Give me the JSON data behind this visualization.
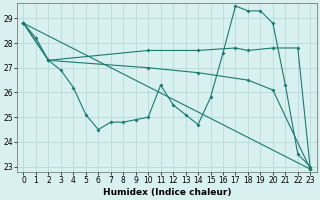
{
  "xlabel": "Humidex (Indice chaleur)",
  "bg_color": "#d8f0f0",
  "grid_color": "#b8dada",
  "line_color": "#1a7a6e",
  "xlim": [
    -0.5,
    23.5
  ],
  "ylim": [
    22.8,
    29.6
  ],
  "yticks": [
    23,
    24,
    25,
    26,
    27,
    28,
    29
  ],
  "xticks": [
    0,
    1,
    2,
    3,
    4,
    5,
    6,
    7,
    8,
    9,
    10,
    11,
    12,
    13,
    14,
    15,
    16,
    17,
    18,
    19,
    20,
    21,
    22,
    23
  ],
  "series1_x": [
    0,
    1,
    2,
    3,
    4,
    5,
    6,
    7,
    8,
    9,
    10,
    11,
    12,
    13,
    14,
    15,
    16,
    17,
    18,
    19,
    20,
    21,
    22,
    23
  ],
  "series1_y": [
    28.8,
    28.2,
    27.3,
    26.9,
    26.2,
    25.1,
    24.5,
    24.8,
    24.8,
    24.9,
    25.0,
    26.3,
    25.5,
    25.1,
    24.7,
    25.8,
    27.6,
    29.5,
    29.3,
    29.3,
    28.8,
    26.3,
    23.5,
    23.0
  ],
  "series2_x": [
    0,
    2,
    10,
    14,
    17,
    18,
    20,
    22,
    23
  ],
  "series2_y": [
    28.8,
    27.3,
    27.7,
    27.7,
    27.8,
    27.7,
    27.8,
    27.8,
    22.9
  ],
  "series3_x": [
    0,
    2,
    10,
    14,
    18,
    20,
    23
  ],
  "series3_y": [
    28.8,
    27.3,
    27.0,
    26.8,
    26.5,
    26.1,
    22.9
  ],
  "series4_x": [
    0,
    23
  ],
  "series4_y": [
    28.8,
    22.9
  ]
}
